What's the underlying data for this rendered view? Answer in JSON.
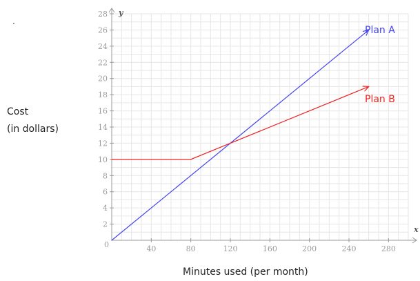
{
  "chart_data": {
    "type": "line",
    "title": "",
    "xlabel": "Minutes used (per month)",
    "ylabel": "Cost (in dollars)",
    "ylabel_lines": [
      "Cost",
      "(in dollars)"
    ],
    "x_axis_letter": "x",
    "y_axis_letter": "y",
    "origin_label": "0",
    "xlim": [
      0,
      300
    ],
    "ylim": [
      0,
      28
    ],
    "x_ticks": [
      40,
      80,
      120,
      160,
      200,
      240,
      280
    ],
    "y_ticks": [
      2,
      4,
      6,
      8,
      10,
      12,
      14,
      16,
      18,
      20,
      22,
      24,
      26,
      28
    ],
    "grid": true,
    "series": [
      {
        "name": "Plan A",
        "color": "#4444ee",
        "x": [
          0,
          260
        ],
        "y": [
          0,
          26
        ],
        "arrow_end": true
      },
      {
        "name": "Plan B",
        "color": "#ee2222",
        "x": [
          0,
          80,
          120,
          260
        ],
        "y": [
          10,
          10,
          12,
          19
        ],
        "arrow_end": true
      }
    ],
    "decor_dot": "."
  }
}
